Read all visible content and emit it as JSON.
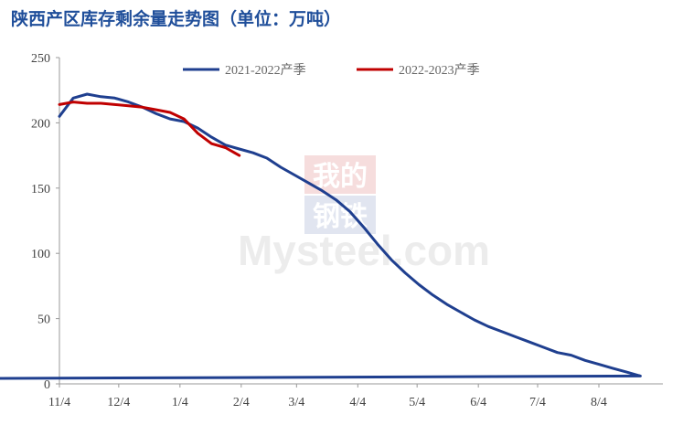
{
  "title": "陕西产区库存剩余量走势图（单位：万吨）",
  "watermark": {
    "top": "我的",
    "middle": "钢铁",
    "brand": "Mysteel.com"
  },
  "chart_data": {
    "type": "line",
    "title": "陕西产区库存剩余量走势图（单位：万吨）",
    "xlabel": "",
    "ylabel": "",
    "ylim": [
      0,
      250
    ],
    "yticks": [
      0,
      50,
      100,
      150,
      200,
      250
    ],
    "x_tick_labels": [
      "11/4",
      "12/4",
      "1/4",
      "2/4",
      "3/4",
      "4/4",
      "5/4",
      "6/4",
      "7/4",
      "8/4"
    ],
    "x_range": [
      "11/4",
      "9/4"
    ],
    "grid": false,
    "legend_position": "top",
    "series": [
      {
        "name": "2021-2022产季",
        "color": "#1f3f8f",
        "points": [
          [
            "11/4",
            205
          ],
          [
            "11/11",
            219
          ],
          [
            "11/18",
            222
          ],
          [
            "11/25",
            220
          ],
          [
            "12/2",
            219
          ],
          [
            "12/9",
            216
          ],
          [
            "12/16",
            212
          ],
          [
            "12/23",
            207
          ],
          [
            "12/30",
            203
          ],
          [
            "1/6",
            201
          ],
          [
            "1/13",
            196
          ],
          [
            "1/20",
            189
          ],
          [
            "1/27",
            183
          ],
          [
            "2/3",
            180
          ],
          [
            "2/10",
            177
          ],
          [
            "2/17",
            173
          ],
          [
            "2/24",
            166
          ],
          [
            "3/3",
            160
          ],
          [
            "3/10",
            154
          ],
          [
            "3/17",
            148
          ],
          [
            "3/24",
            141
          ],
          [
            "3/31",
            132
          ],
          [
            "4/7",
            120
          ],
          [
            "4/14",
            107
          ],
          [
            "4/21",
            95
          ],
          [
            "4/28",
            85
          ],
          [
            "5/5",
            76
          ],
          [
            "5/12",
            68
          ],
          [
            "5/19",
            61
          ],
          [
            "5/26",
            55
          ],
          [
            "6/2",
            49
          ],
          [
            "6/9",
            44
          ],
          [
            "6/16",
            40
          ],
          [
            "6/23",
            36
          ],
          [
            "6/30",
            32
          ],
          [
            "7/7",
            28
          ],
          [
            "7/14",
            24
          ],
          [
            "7/21",
            22
          ],
          [
            "7/28",
            18
          ],
          [
            "8/4",
            15
          ],
          [
            "8/11",
            12
          ],
          [
            "8/18",
            9
          ],
          [
            "8/25",
            6
          ],
          [
            "9/1",
            4
          ],
          [
            "9/8",
            2
          ]
        ]
      },
      {
        "name": "2022-2023产季",
        "color": "#c00000",
        "points": [
          [
            "11/4",
            214
          ],
          [
            "11/11",
            216
          ],
          [
            "11/18",
            215
          ],
          [
            "11/25",
            215
          ],
          [
            "12/2",
            214
          ],
          [
            "12/9",
            213
          ],
          [
            "12/16",
            212
          ],
          [
            "12/23",
            210
          ],
          [
            "12/30",
            208
          ],
          [
            "1/6",
            203
          ],
          [
            "1/13",
            192
          ],
          [
            "1/20",
            184
          ],
          [
            "1/27",
            181
          ],
          [
            "2/3",
            175
          ]
        ]
      }
    ]
  }
}
